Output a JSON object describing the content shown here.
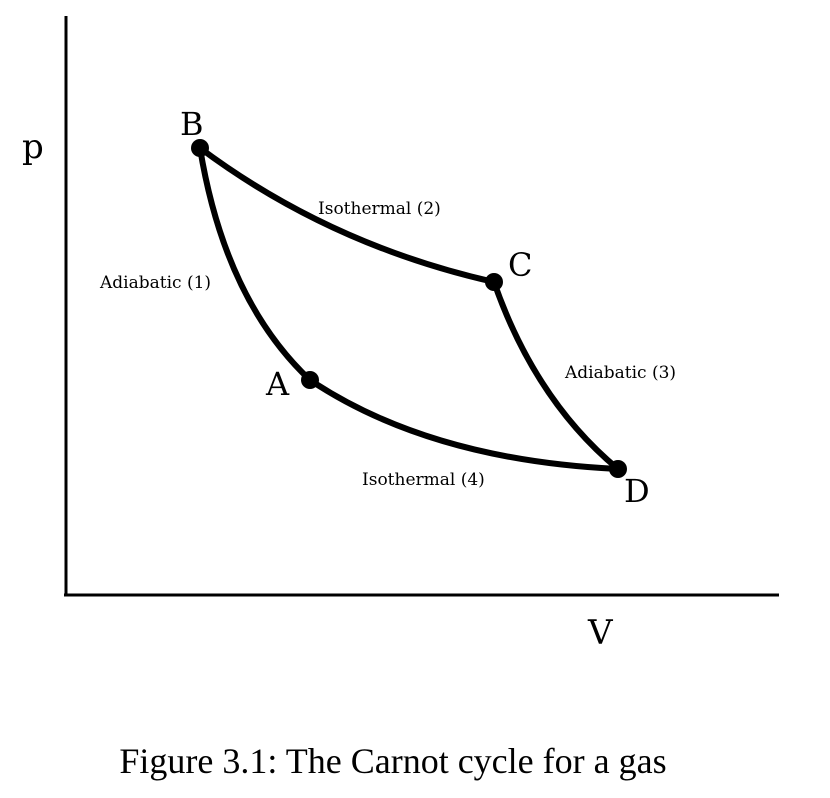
{
  "axes": {
    "y_label": "p",
    "x_label": "V"
  },
  "points": {
    "A": "A",
    "B": "B",
    "C": "C",
    "D": "D"
  },
  "processes": {
    "adiabatic_1": "Adiabatic (1)",
    "isothermal_2": "Isothermal (2)",
    "adiabatic_3": "Adiabatic (3)",
    "isothermal_4": "Isothermal (4)"
  },
  "caption": "Figure 3.1: The Carnot cycle for a gas",
  "colors": {
    "line": "#000000",
    "background": "#ffffff"
  }
}
